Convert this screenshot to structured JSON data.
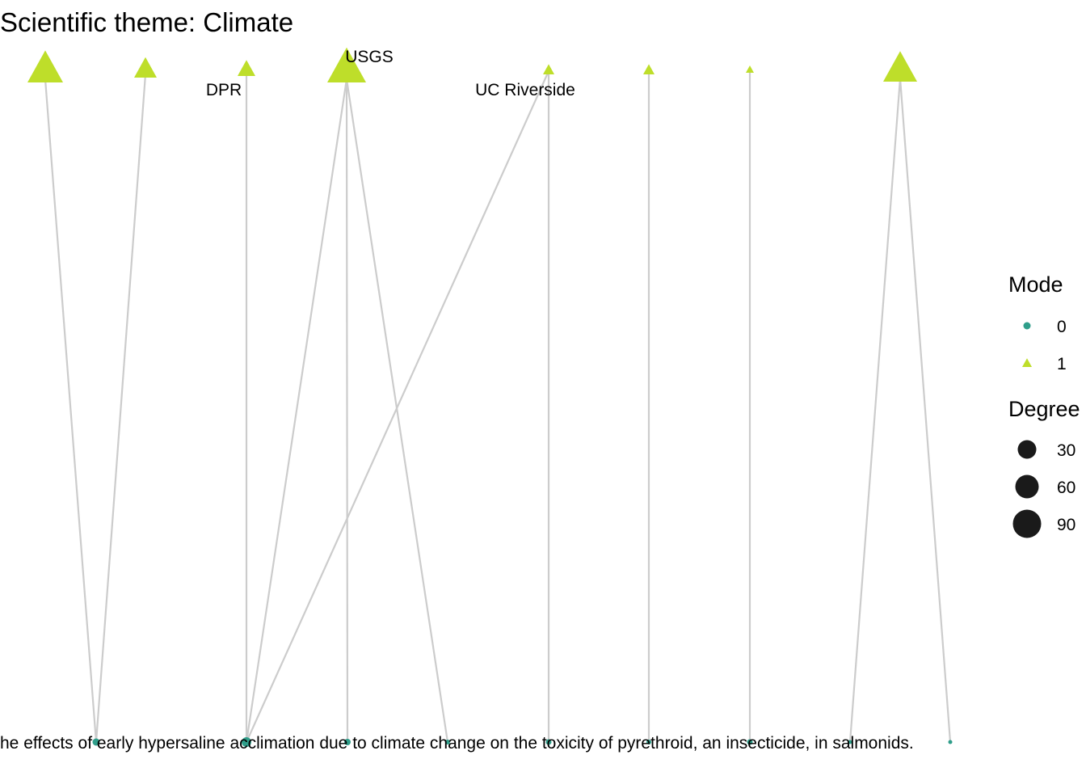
{
  "title": "Scientific theme: Climate",
  "colors": {
    "mode0": "#2f9e8a",
    "mode1": "#bede2a",
    "edge": "#cccccc",
    "degree_swatch": "#1a1a1a"
  },
  "chart_data": {
    "type": "bipartite-network",
    "top_nodes": [
      {
        "id": "t1",
        "label": "",
        "mode": 1
      },
      {
        "id": "t2",
        "label": "",
        "mode": 1
      },
      {
        "id": "t3",
        "label": "DPR",
        "mode": 1
      },
      {
        "id": "t4",
        "label": "USGS",
        "mode": 1
      },
      {
        "id": "t5",
        "label": "UC Riverside",
        "mode": 1
      },
      {
        "id": "t6",
        "label": "",
        "mode": 1
      },
      {
        "id": "t7",
        "label": "",
        "mode": 1
      },
      {
        "id": "t8",
        "label": "",
        "mode": 1
      }
    ],
    "bottom_nodes": [
      {
        "id": "b1",
        "mode": 0
      },
      {
        "id": "b2",
        "mode": 0
      },
      {
        "id": "b3",
        "mode": 0
      },
      {
        "id": "b4",
        "mode": 0
      },
      {
        "id": "b5",
        "mode": 0
      },
      {
        "id": "b6",
        "mode": 0
      },
      {
        "id": "b7",
        "mode": 0
      },
      {
        "id": "b8",
        "mode": 0
      },
      {
        "id": "b9",
        "mode": 0
      }
    ],
    "bottom_label": "he effects of early hypersaline acclimation due to climate change on the toxicity of pyrethroid, an insecticide, in salmonids.",
    "edges": [
      [
        "t1",
        "b1"
      ],
      [
        "t2",
        "b1"
      ],
      [
        "t3",
        "b2"
      ],
      [
        "t4",
        "b2"
      ],
      [
        "t4",
        "b3"
      ],
      [
        "t4",
        "b4"
      ],
      [
        "t5",
        "b2"
      ],
      [
        "t5",
        "b5"
      ],
      [
        "t6",
        "b6"
      ],
      [
        "t7",
        "b7"
      ],
      [
        "t8",
        "b8"
      ],
      [
        "t8",
        "b9"
      ]
    ],
    "legend": {
      "mode_title": "Mode",
      "mode_items": [
        {
          "label": "0",
          "shape": "circle",
          "mode": 0
        },
        {
          "label": "1",
          "shape": "triangle",
          "mode": 1
        }
      ],
      "degree_title": "Degree",
      "degree_items": [
        {
          "label": "30",
          "degree": 30
        },
        {
          "label": "60",
          "degree": 60
        },
        {
          "label": "90",
          "degree": 90
        }
      ]
    }
  }
}
